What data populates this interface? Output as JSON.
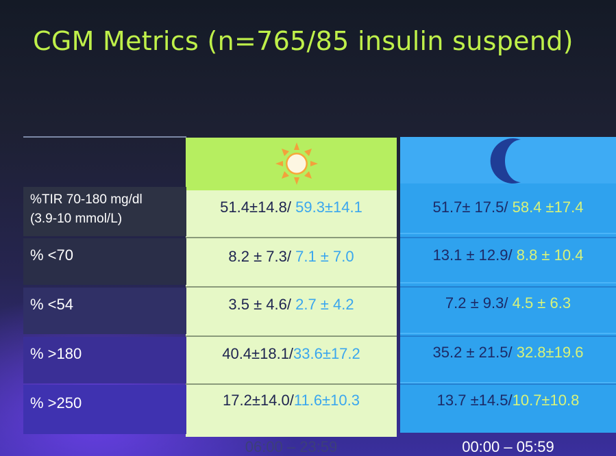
{
  "title": "CGM Metrics (n=765/85 insulin suspend)",
  "columns": {
    "day": {
      "icon": "sun-icon",
      "time": "06:00 – 23:59"
    },
    "night": {
      "icon": "moon-icon",
      "time": "00:00 – 05:59"
    }
  },
  "rows": [
    {
      "label_line1": "%TIR 70-180 mg/dl",
      "label_line2": "(3.9-10 mmol/L)",
      "day_a": "51.4±14.8/ ",
      "day_b": "59.3±14.1",
      "night_a": "51.7± 17.5/ ",
      "night_b": "58.4 ±17.4"
    },
    {
      "label": "%  <70",
      "day_a": "8.2 ± 7.3/ ",
      "day_b": "7.1 ± 7.0",
      "night_a": "13.1 ± 12.9/ ",
      "night_b": "8.8 ± 10.4"
    },
    {
      "label": "%  <54",
      "day_a": "3.5 ± 4.6/ ",
      "day_b": "2.7 ± 4.2",
      "night_a": "7.2 ± 9.3/ ",
      "night_b": "4.5 ± 6.3"
    },
    {
      "label": "% >180",
      "day_a": "40.4±18.1/",
      "day_b": "33.6±17.2",
      "night_a": "35.2 ± 21.5/ ",
      "night_b": "32.8±19.6"
    },
    {
      "label": "% >250",
      "day_a": "17.2±14.0/",
      "day_b": "11.6±10.3",
      "night_a": "13.7 ±14.5/",
      "night_b": "10.7±10.8"
    }
  ],
  "colors": {
    "title": "#bff04a",
    "day_header": "#b6ee60",
    "day_body": "#e6f8c6",
    "night_body": "#2fa2ee",
    "day_highlight": "#3aa6ee",
    "night_highlight": "#d8f37a",
    "sun": "#f5a623"
  }
}
